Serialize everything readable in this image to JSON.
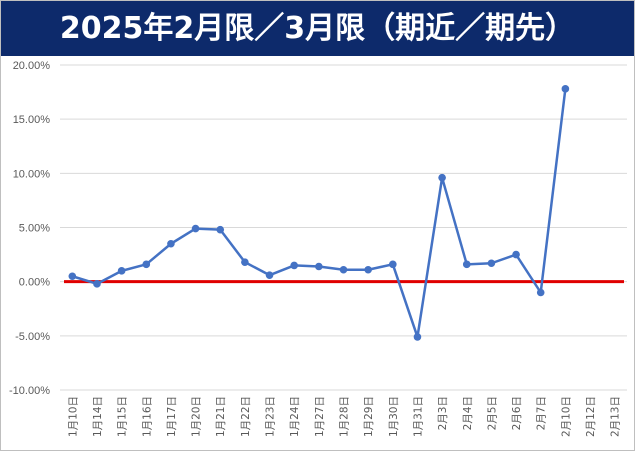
{
  "title": "2025年2月限／3月限（期近／期先）",
  "chart_data": {
    "type": "line",
    "title": "2025年2月限／3月限（期近／期先）",
    "xlabel": "",
    "ylabel": "",
    "ylim": [
      -10,
      20
    ],
    "y_ticks": [
      "20.00%",
      "15.00%",
      "10.00%",
      "5.00%",
      "0.00%",
      "-5.00%",
      "-10.00%"
    ],
    "y_tick_values": [
      20,
      15,
      10,
      5,
      0,
      -5,
      -10
    ],
    "categories": [
      "1月10日",
      "1月14日",
      "1月15日",
      "1月16日",
      "1月17日",
      "1月20日",
      "1月21日",
      "1月22日",
      "1月23日",
      "1月24日",
      "1月27日",
      "1月28日",
      "1月29日",
      "1月30日",
      "1月31日",
      "2月3日",
      "2月4日",
      "2月5日",
      "2月6日",
      "2月7日",
      "2月10日",
      "2月12日",
      "2月13日"
    ],
    "series": [
      {
        "color": "#4472c4",
        "values": [
          0.5,
          -0.2,
          1.0,
          1.6,
          3.5,
          4.9,
          4.8,
          1.8,
          0.6,
          1.5,
          1.4,
          1.1,
          1.1,
          1.6,
          -5.1,
          9.6,
          1.6,
          1.7,
          2.5,
          -1.0,
          17.8,
          null,
          null
        ]
      }
    ],
    "zero_line_color": "#e00000",
    "grid": true,
    "legend": "none"
  }
}
